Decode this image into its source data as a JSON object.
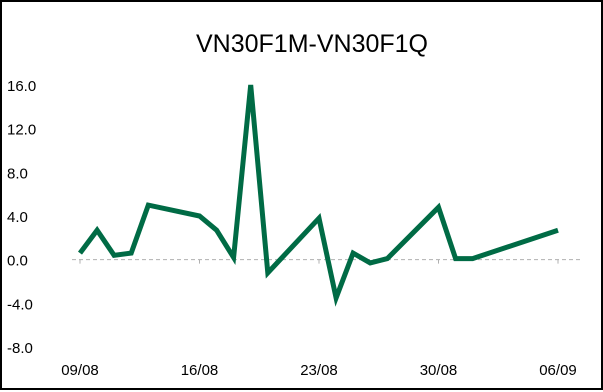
{
  "chart_data": {
    "type": "line",
    "title": "VN30F1M-VN30F1Q",
    "xlabel": "",
    "ylabel": "",
    "ylim": [
      -8,
      16
    ],
    "y_ticks": [
      "16.0",
      "12.0",
      "8.0",
      "4.0",
      "0.0",
      "-4.0",
      "-8.0"
    ],
    "y_tick_values": [
      16,
      12,
      8,
      4,
      0,
      -4,
      -8
    ],
    "x_ticks": [
      "09/08",
      "16/08",
      "23/08",
      "30/08",
      "06/09"
    ],
    "x_tick_dates": [
      "2021-08-09",
      "2021-08-16",
      "2021-08-23",
      "2021-08-30",
      "2021-09-06"
    ],
    "grid": false,
    "series": [
      {
        "color": "#006b45",
        "points": [
          {
            "x": "2021-08-09",
            "y": 0.6
          },
          {
            "x": "2021-08-10",
            "y": 2.7
          },
          {
            "x": "2021-08-11",
            "y": 0.4
          },
          {
            "x": "2021-08-12",
            "y": 0.6
          },
          {
            "x": "2021-08-13",
            "y": 5.0
          },
          {
            "x": "2021-08-16",
            "y": 4.0
          },
          {
            "x": "2021-08-17",
            "y": 2.7
          },
          {
            "x": "2021-08-18",
            "y": 0.2
          },
          {
            "x": "2021-08-19",
            "y": 16.0
          },
          {
            "x": "2021-08-20",
            "y": -1.2
          },
          {
            "x": "2021-08-23",
            "y": 3.8
          },
          {
            "x": "2021-08-24",
            "y": -3.5
          },
          {
            "x": "2021-08-25",
            "y": 0.6
          },
          {
            "x": "2021-08-26",
            "y": -0.3
          },
          {
            "x": "2021-08-27",
            "y": 0.1
          },
          {
            "x": "2021-08-30",
            "y": 4.8
          },
          {
            "x": "2021-08-31",
            "y": 0.1
          },
          {
            "x": "2021-09-01",
            "y": 0.1
          },
          {
            "x": "2021-09-06",
            "y": 2.7
          }
        ]
      }
    ]
  }
}
